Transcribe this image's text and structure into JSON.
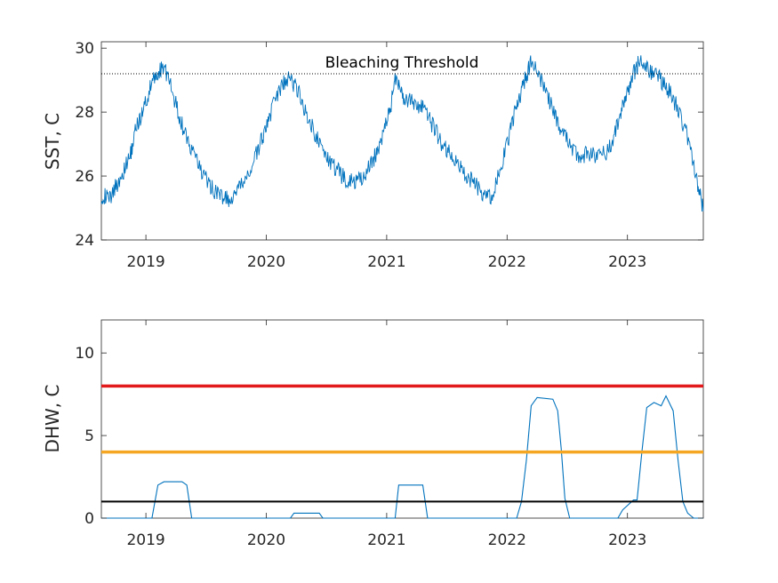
{
  "chart_data": [
    {
      "type": "line",
      "title": "",
      "xlabel": "",
      "ylabel": "SST, C",
      "xlim": [
        2018.63,
        2023.63
      ],
      "ylim": [
        24,
        30.2
      ],
      "x_ticks": [
        2019,
        2020,
        2021,
        2022,
        2023
      ],
      "x_tick_labels": [
        "2019",
        "2020",
        "2021",
        "2022",
        "2023"
      ],
      "y_ticks": [
        24,
        26,
        28,
        30
      ],
      "y_tick_labels": [
        "24",
        "26",
        "28",
        "30"
      ],
      "grid": false,
      "legend": "none",
      "series": [
        {
          "color": "#0072bd",
          "x": [
            2018.63,
            2018.7,
            2018.78,
            2018.86,
            2018.92,
            2018.98,
            2019.05,
            2019.1,
            2019.15,
            2019.22,
            2019.3,
            2019.38,
            2019.47,
            2019.55,
            2019.62,
            2019.7,
            2019.78,
            2019.87,
            2019.95,
            2020.02,
            2020.1,
            2020.18,
            2020.25,
            2020.33,
            2020.42,
            2020.5,
            2020.58,
            2020.66,
            2020.74,
            2020.82,
            2020.9,
            2020.97,
            2021.03,
            2021.08,
            2021.14,
            2021.22,
            2021.3,
            2021.38,
            2021.46,
            2021.54,
            2021.62,
            2021.7,
            2021.78,
            2021.86,
            2021.94,
            2022.02,
            2022.08,
            2022.14,
            2022.2,
            2022.28,
            2022.36,
            2022.44,
            2022.52,
            2022.6,
            2022.68,
            2022.76,
            2022.84,
            2022.92,
            2022.98,
            2023.04,
            2023.1,
            2023.18,
            2023.26,
            2023.34,
            2023.42,
            2023.5,
            2023.58,
            2023.63
          ],
          "y": [
            25.4,
            25.3,
            25.9,
            26.5,
            27.5,
            28.1,
            28.9,
            29.2,
            29.5,
            28.6,
            27.6,
            26.8,
            26.1,
            25.6,
            25.4,
            25.2,
            25.6,
            26.2,
            27.0,
            27.8,
            28.6,
            29.1,
            28.8,
            28.0,
            27.2,
            26.6,
            26.2,
            25.9,
            25.8,
            26.0,
            26.6,
            27.3,
            28.1,
            29.2,
            28.4,
            28.3,
            28.1,
            27.6,
            27.0,
            26.6,
            26.2,
            25.9,
            25.5,
            25.3,
            26.1,
            27.3,
            28.2,
            28.9,
            29.6,
            29.0,
            28.3,
            27.5,
            27.0,
            26.6,
            26.7,
            26.6,
            26.8,
            27.6,
            28.4,
            29.1,
            29.6,
            29.3,
            29.1,
            28.7,
            28.1,
            27.2,
            25.8,
            24.9
          ]
        }
      ],
      "reference_lines": [
        {
          "y": 29.2,
          "style": "dotted",
          "color": "#000000",
          "label": "Bleaching Threshold"
        }
      ]
    },
    {
      "type": "line",
      "title": "",
      "xlabel": "",
      "ylabel": "DHW, C",
      "xlim": [
        2018.63,
        2023.63
      ],
      "ylim": [
        0,
        12
      ],
      "x_ticks": [
        2019,
        2020,
        2021,
        2022,
        2023
      ],
      "x_tick_labels": [
        "2019",
        "2020",
        "2021",
        "2022",
        "2023"
      ],
      "y_ticks": [
        0,
        5,
        10
      ],
      "y_tick_labels": [
        "0",
        "5",
        "10"
      ],
      "grid": false,
      "legend": "none",
      "series": [
        {
          "color": "#0072bd",
          "x": [
            2018.63,
            2019.05,
            2019.1,
            2019.15,
            2019.3,
            2019.34,
            2019.38,
            2020.2,
            2020.23,
            2020.44,
            2020.47,
            2021.07,
            2021.1,
            2021.3,
            2021.34,
            2022.08,
            2022.12,
            2022.16,
            2022.2,
            2022.25,
            2022.38,
            2022.42,
            2022.45,
            2022.48,
            2022.52,
            2022.92,
            2022.96,
            2023.05,
            2023.08,
            2023.12,
            2023.16,
            2023.22,
            2023.28,
            2023.32,
            2023.38,
            2023.42,
            2023.46,
            2023.5,
            2023.55,
            2023.63
          ],
          "y": [
            0,
            0,
            2.0,
            2.2,
            2.2,
            2.0,
            0,
            0,
            0.3,
            0.3,
            0,
            0,
            2.0,
            2.0,
            0,
            0,
            1.0,
            3.5,
            6.8,
            7.3,
            7.2,
            6.5,
            4.2,
            1.2,
            0,
            0,
            0.5,
            1.1,
            1.1,
            4.0,
            6.7,
            7.0,
            6.8,
            7.4,
            6.5,
            3.5,
            1.0,
            0.3,
            0,
            0
          ]
        }
      ],
      "reference_lines": [
        {
          "y": 8,
          "color": "#e31a1c"
        },
        {
          "y": 4,
          "color": "#f5a623"
        },
        {
          "y": 1,
          "color": "#000000"
        }
      ]
    }
  ]
}
